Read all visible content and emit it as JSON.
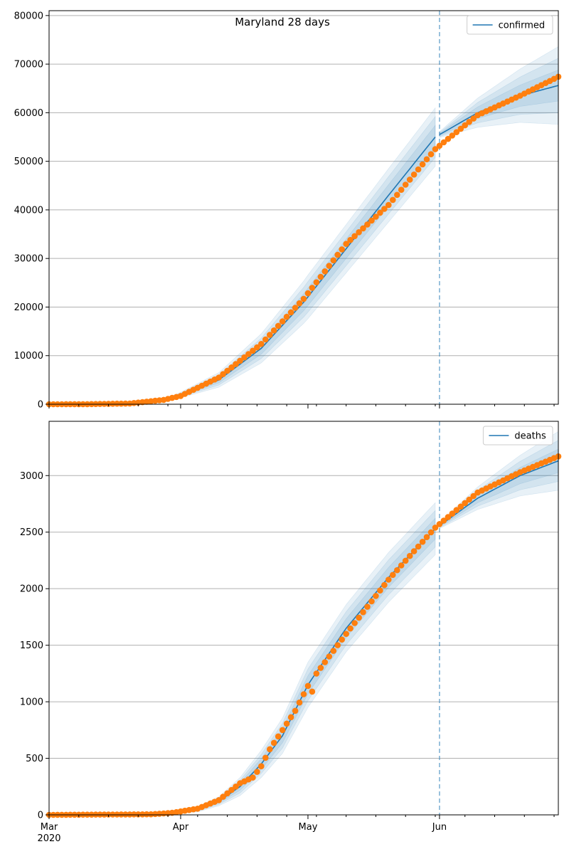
{
  "figure": {
    "title": "Maryland 28 days"
  },
  "colors": {
    "model": "#1f77b4",
    "observed": "#ff7f0e",
    "band": "#1f77b4",
    "grid": "#b0b0b0",
    "vline": "#1f77b4"
  },
  "chart_data": [
    {
      "type": "line",
      "title": "Maryland 28 days",
      "legend": {
        "entries": [
          "confirmed"
        ],
        "placement": "top-right"
      },
      "xlabel": "",
      "ylabel": "",
      "x_range": [
        "2020-03-01",
        "2020-06-29"
      ],
      "ylim": [
        0,
        81000
      ],
      "yticks": [
        0,
        10000,
        20000,
        30000,
        40000,
        50000,
        60000,
        70000,
        80000
      ],
      "grid": "horizontal",
      "vline_date": "2020-06-01",
      "model_knots": [
        [
          "2020-03-01",
          0
        ],
        [
          "2020-03-10",
          0
        ],
        [
          "2020-03-20",
          100
        ],
        [
          "2020-03-28",
          700
        ],
        [
          "2020-04-01",
          1900
        ],
        [
          "2020-04-10",
          5000
        ],
        [
          "2020-04-20",
          11500
        ],
        [
          "2020-04-30",
          21000
        ],
        [
          "2020-05-10",
          32000
        ],
        [
          "2020-05-20",
          43000
        ],
        [
          "2020-05-31",
          55000
        ],
        [
          "2020-06-10",
          60000
        ],
        [
          "2020-06-20",
          63500
        ],
        [
          "2020-06-29",
          65600
        ]
      ],
      "band_spread": [
        [
          "2020-03-01",
          0
        ],
        [
          "2020-03-28",
          150
        ],
        [
          "2020-04-10",
          1500
        ],
        [
          "2020-04-20",
          3000
        ],
        [
          "2020-05-01",
          4500
        ],
        [
          "2020-05-20",
          5500
        ],
        [
          "2020-05-31",
          6000
        ],
        [
          "2020-06-01",
          600
        ],
        [
          "2020-06-10",
          3000
        ],
        [
          "2020-06-20",
          5500
        ],
        [
          "2020-06-29",
          8000
        ]
      ],
      "observed_knots": [
        [
          "2020-03-01",
          0
        ],
        [
          "2020-03-10",
          20
        ],
        [
          "2020-03-20",
          150
        ],
        [
          "2020-03-28",
          900
        ],
        [
          "2020-04-01",
          1700
        ],
        [
          "2020-04-10",
          5500
        ],
        [
          "2020-04-20",
          12400
        ],
        [
          "2020-04-30",
          21700
        ],
        [
          "2020-05-10",
          33000
        ],
        [
          "2020-05-20",
          41000
        ],
        [
          "2020-05-31",
          52500
        ],
        [
          "2020-06-10",
          59500
        ],
        [
          "2020-06-20",
          63500
        ],
        [
          "2020-06-29",
          67400
        ]
      ]
    },
    {
      "type": "line",
      "legend": {
        "entries": [
          "deaths"
        ],
        "placement": "top-right"
      },
      "xlabel": "",
      "ylabel": "",
      "x_range": [
        "2020-03-01",
        "2020-06-29"
      ],
      "ylim": [
        0,
        3480
      ],
      "yticks": [
        0,
        500,
        1000,
        1500,
        2000,
        2500,
        3000
      ],
      "grid": "horizontal",
      "vline_date": "2020-06-01",
      "model_knots": [
        [
          "2020-03-01",
          0
        ],
        [
          "2020-03-20",
          3
        ],
        [
          "2020-03-30",
          15
        ],
        [
          "2020-04-05",
          50
        ],
        [
          "2020-04-10",
          120
        ],
        [
          "2020-04-15",
          250
        ],
        [
          "2020-04-20",
          450
        ],
        [
          "2020-04-25",
          700
        ],
        [
          "2020-05-01",
          1150
        ],
        [
          "2020-05-10",
          1650
        ],
        [
          "2020-05-20",
          2100
        ],
        [
          "2020-05-31",
          2530
        ],
        [
          "2020-06-10",
          2800
        ],
        [
          "2020-06-20",
          3000
        ],
        [
          "2020-06-29",
          3130
        ]
      ],
      "band_spread": [
        [
          "2020-03-01",
          0
        ],
        [
          "2020-04-01",
          10
        ],
        [
          "2020-04-10",
          40
        ],
        [
          "2020-04-20",
          120
        ],
        [
          "2020-05-01",
          200
        ],
        [
          "2020-05-20",
          220
        ],
        [
          "2020-05-31",
          230
        ],
        [
          "2020-06-01",
          25
        ],
        [
          "2020-06-10",
          100
        ],
        [
          "2020-06-20",
          180
        ],
        [
          "2020-06-29",
          260
        ]
      ],
      "observed_knots": [
        [
          "2020-03-01",
          0
        ],
        [
          "2020-03-25",
          5
        ],
        [
          "2020-03-30",
          18
        ],
        [
          "2020-04-05",
          55
        ],
        [
          "2020-04-10",
          130
        ],
        [
          "2020-04-15",
          280
        ],
        [
          "2020-04-18",
          330
        ],
        [
          "2020-04-20",
          430
        ],
        [
          "2020-04-22",
          580
        ],
        [
          "2020-04-25",
          750
        ],
        [
          "2020-04-28",
          920
        ],
        [
          "2020-05-01",
          1140
        ],
        [
          "2020-05-02",
          1090
        ],
        [
          "2020-05-03",
          1250
        ],
        [
          "2020-05-10",
          1600
        ],
        [
          "2020-05-20",
          2080
        ],
        [
          "2020-05-31",
          2540
        ],
        [
          "2020-06-10",
          2850
        ],
        [
          "2020-06-20",
          3030
        ],
        [
          "2020-06-29",
          3170
        ]
      ]
    }
  ],
  "x_axis": {
    "major_ticks": [
      {
        "date": "2020-03-01",
        "label": "Mar",
        "sub": "2020"
      },
      {
        "date": "2020-04-01",
        "label": "Apr",
        "sub": ""
      },
      {
        "date": "2020-05-01",
        "label": "May",
        "sub": ""
      },
      {
        "date": "2020-06-01",
        "label": "Jun",
        "sub": ""
      }
    ]
  }
}
